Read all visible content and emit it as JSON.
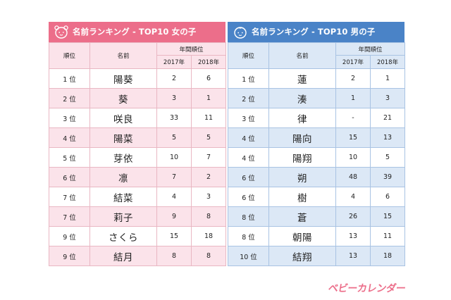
{
  "girls": {
    "title": "名前ランキング - TOP10 女の子",
    "headers": {
      "rank": "順位",
      "name": "名前",
      "yearly": "年間順位",
      "y2017": "2017年",
      "y2018": "2018年"
    },
    "rows": [
      {
        "rank": "1 位",
        "name": "陽葵",
        "y2017": "2",
        "y2018": "6"
      },
      {
        "rank": "2 位",
        "name": "葵",
        "y2017": "3",
        "y2018": "1"
      },
      {
        "rank": "3 位",
        "name": "咲良",
        "y2017": "33",
        "y2018": "11"
      },
      {
        "rank": "4 位",
        "name": "陽菜",
        "y2017": "5",
        "y2018": "5"
      },
      {
        "rank": "5 位",
        "name": "芽依",
        "y2017": "10",
        "y2018": "7"
      },
      {
        "rank": "6 位",
        "name": "凛",
        "y2017": "7",
        "y2018": "2"
      },
      {
        "rank": "7 位",
        "name": "結菜",
        "y2017": "4",
        "y2018": "3"
      },
      {
        "rank": "7 位",
        "name": "莉子",
        "y2017": "9",
        "y2018": "8"
      },
      {
        "rank": "9 位",
        "name": "さくら",
        "y2017": "15",
        "y2018": "18"
      },
      {
        "rank": "9 位",
        "name": "結月",
        "y2017": "8",
        "y2018": "8"
      }
    ]
  },
  "boys": {
    "title": "名前ランキング - TOP10 男の子",
    "headers": {
      "rank": "順位",
      "name": "名前",
      "yearly": "年間順位",
      "y2017": "2017年",
      "y2018": "2018年"
    },
    "rows": [
      {
        "rank": "1 位",
        "name": "蓮",
        "y2017": "2",
        "y2018": "1"
      },
      {
        "rank": "2 位",
        "name": "湊",
        "y2017": "1",
        "y2018": "3"
      },
      {
        "rank": "3 位",
        "name": "律",
        "y2017": "-",
        "y2018": "21"
      },
      {
        "rank": "4 位",
        "name": "陽向",
        "y2017": "15",
        "y2018": "13"
      },
      {
        "rank": "4 位",
        "name": "陽翔",
        "y2017": "10",
        "y2018": "5"
      },
      {
        "rank": "6 位",
        "name": "朔",
        "y2017": "48",
        "y2018": "39"
      },
      {
        "rank": "6 位",
        "name": "樹",
        "y2017": "4",
        "y2018": "6"
      },
      {
        "rank": "8 位",
        "name": "蒼",
        "y2017": "26",
        "y2018": "15"
      },
      {
        "rank": "8 位",
        "name": "朝陽",
        "y2017": "13",
        "y2018": "11"
      },
      {
        "rank": "10 位",
        "name": "結翔",
        "y2017": "13",
        "y2018": "18"
      }
    ]
  },
  "logo": {
    "text": "ベビーカレンダー"
  },
  "icons": {
    "girls_panel": "girl-face-icon",
    "boys_panel": "boy-face-icon"
  },
  "colors": {
    "girls_accent": "#ec6e8a",
    "girls_light": "#fbe3ea",
    "boys_accent": "#4a83c7",
    "boys_light": "#dce8f6"
  }
}
